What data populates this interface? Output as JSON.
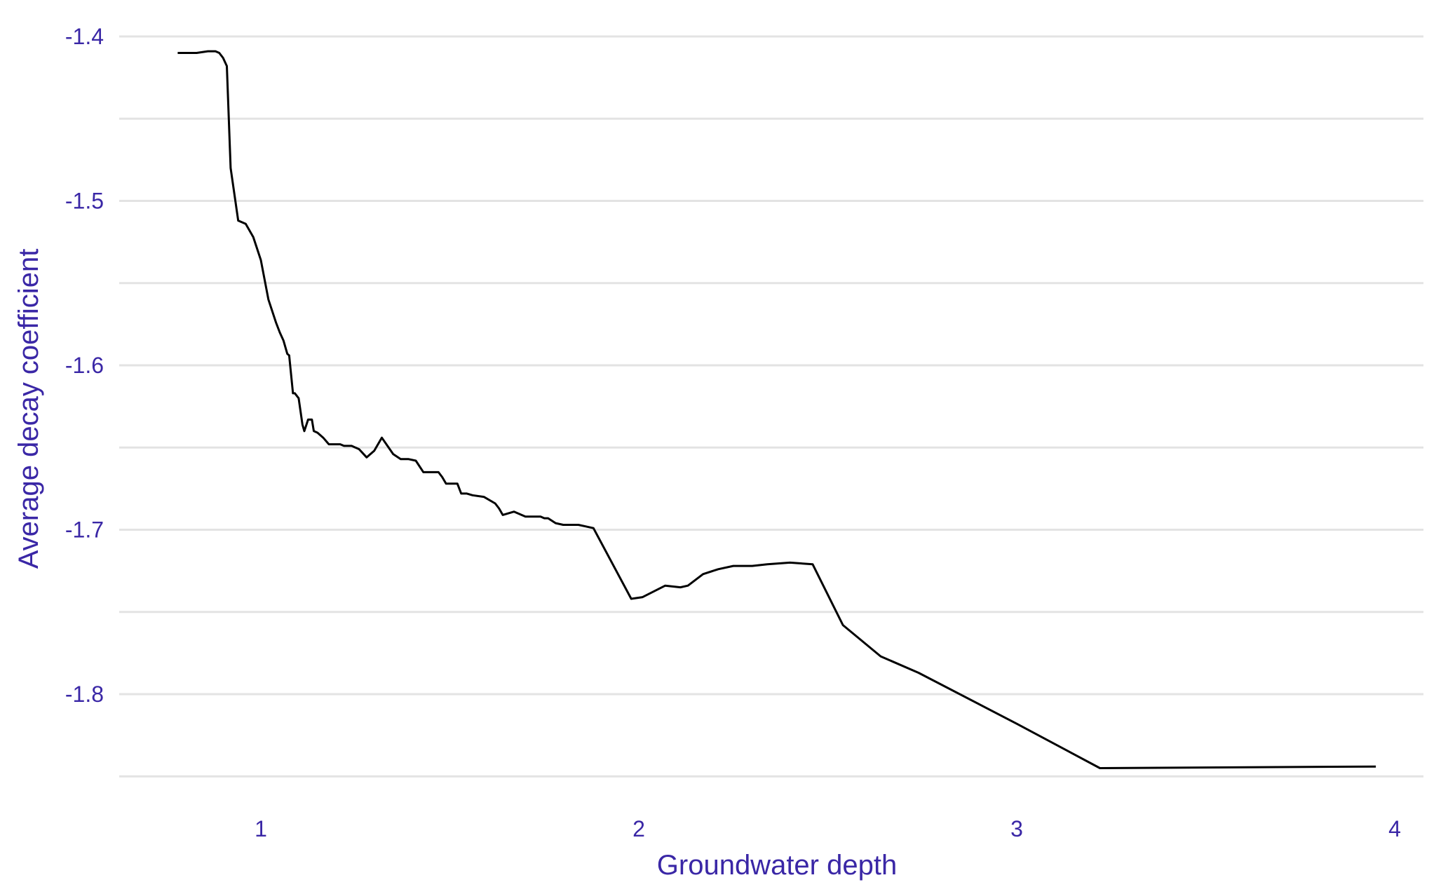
{
  "chart_data": {
    "type": "line",
    "title": "",
    "xlabel": "Groundwater depth",
    "ylabel": "Average decay coefficient",
    "xlim": [
      0.62,
      4.08
    ],
    "ylim": [
      -1.85,
      -1.4
    ],
    "x_ticks": [
      1,
      2,
      3,
      4
    ],
    "x_tick_labels": [
      "1",
      "2",
      "3",
      "4"
    ],
    "y_ticks": [
      -1.4,
      -1.5,
      -1.6,
      -1.7,
      -1.8
    ],
    "y_tick_labels": [
      "-1.4",
      "-1.5",
      "-1.6",
      "-1.7",
      "-1.8"
    ],
    "y_minor_ticks": [
      -1.45,
      -1.55,
      -1.65,
      -1.75,
      -1.85
    ],
    "grid": "horizontal",
    "legend": "none",
    "colors": {
      "line": "#000000",
      "text": "#3a27a6",
      "grid": "#e3e3e3"
    },
    "series": [
      {
        "x": [
          0.78,
          0.83,
          0.86,
          0.88,
          0.89,
          0.9,
          0.91,
          0.92,
          0.94,
          0.96,
          0.98,
          1.0,
          1.02,
          1.04,
          1.05,
          1.06,
          1.07,
          1.075,
          1.085,
          1.09,
          1.1,
          1.11,
          1.115,
          1.125,
          1.135,
          1.14,
          1.15,
          1.165,
          1.18,
          1.2,
          1.21,
          1.22,
          1.24,
          1.26,
          1.28,
          1.3,
          1.32,
          1.35,
          1.37,
          1.39,
          1.41,
          1.43,
          1.44,
          1.46,
          1.47,
          1.48,
          1.49,
          1.52,
          1.53,
          1.545,
          1.56,
          1.59,
          1.62,
          1.63,
          1.64,
          1.67,
          1.7,
          1.72,
          1.74,
          1.75,
          1.76,
          1.78,
          1.8,
          1.82,
          1.84,
          1.86,
          1.88,
          1.98,
          2.01,
          2.07,
          2.11,
          2.13,
          2.17,
          2.21,
          2.25,
          2.27,
          2.3,
          2.34,
          2.4,
          2.46,
          2.54,
          2.64,
          2.74,
          3.0,
          3.22,
          3.95
        ],
        "y": [
          -1.41,
          -1.41,
          -1.409,
          -1.409,
          -1.41,
          -1.413,
          -1.418,
          -1.48,
          -1.512,
          -1.514,
          -1.522,
          -1.536,
          -1.56,
          -1.574,
          -1.58,
          -1.585,
          -1.593,
          -1.594,
          -1.617,
          -1.617,
          -1.62,
          -1.636,
          -1.64,
          -1.633,
          -1.633,
          -1.64,
          -1.641,
          -1.644,
          -1.648,
          -1.648,
          -1.648,
          -1.649,
          -1.649,
          -1.651,
          -1.656,
          -1.652,
          -1.644,
          -1.654,
          -1.657,
          -1.657,
          -1.658,
          -1.665,
          -1.665,
          -1.665,
          -1.665,
          -1.668,
          -1.672,
          -1.672,
          -1.678,
          -1.678,
          -1.679,
          -1.68,
          -1.684,
          -1.687,
          -1.691,
          -1.689,
          -1.692,
          -1.692,
          -1.692,
          -1.693,
          -1.693,
          -1.696,
          -1.697,
          -1.697,
          -1.697,
          -1.698,
          -1.699,
          -1.742,
          -1.741,
          -1.734,
          -1.735,
          -1.734,
          -1.727,
          -1.724,
          -1.722,
          -1.722,
          -1.722,
          -1.721,
          -1.72,
          -1.721,
          -1.758,
          -1.777,
          -1.787,
          -1.818,
          -1.845,
          -1.844
        ]
      }
    ]
  }
}
